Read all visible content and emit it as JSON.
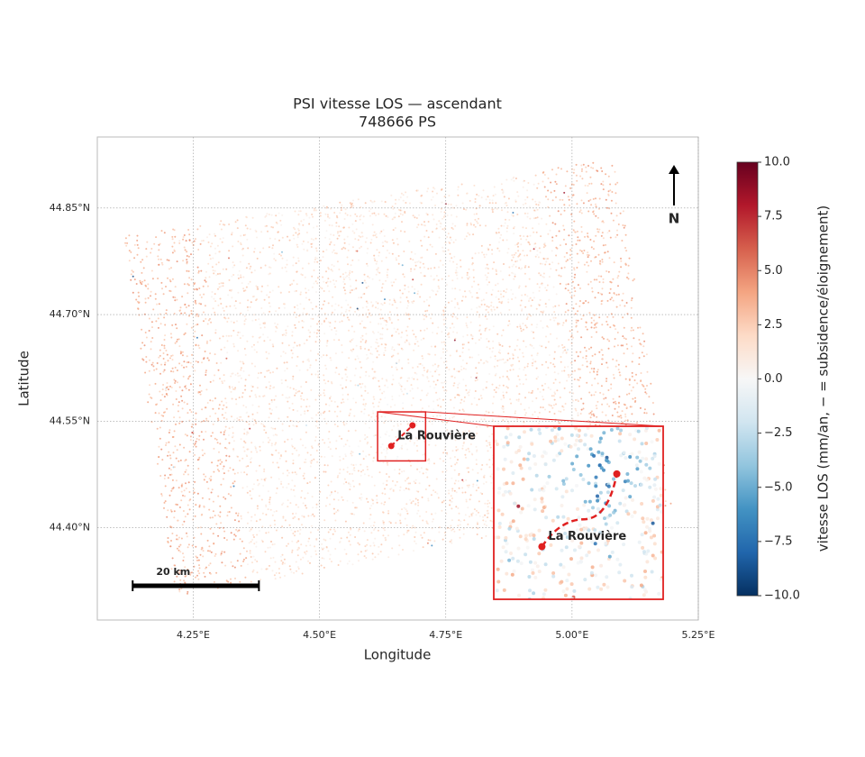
{
  "chart_data": {
    "type": "map-scatter",
    "title": "PSI vitesse LOS — ascendant",
    "subtitle": "748666 PS",
    "x_label": "Longitude",
    "y_label": "Latitude",
    "xlim": [
      4.06,
      5.25
    ],
    "ylim": [
      44.27,
      44.95
    ],
    "xticks": [
      {
        "value": 4.25,
        "label": "4.25°E"
      },
      {
        "value": 4.5,
        "label": "4.50°E"
      },
      {
        "value": 4.75,
        "label": "4.75°E"
      },
      {
        "value": 5.0,
        "label": "5.00°E"
      },
      {
        "value": 5.25,
        "label": "5.25°E"
      }
    ],
    "yticks": [
      {
        "value": 44.85,
        "label": "44.85°N"
      },
      {
        "value": 44.7,
        "label": "44.70°N"
      },
      {
        "value": 44.55,
        "label": "44.55°N"
      },
      {
        "value": 44.4,
        "label": "44.40°N"
      }
    ],
    "grid": true,
    "colormap": [
      "#053061",
      "#2166ac",
      "#4393c3",
      "#92c5de",
      "#d1e5f0",
      "#f7f7f7",
      "#fddbc7",
      "#f4a582",
      "#d6604d",
      "#b2182b",
      "#67001f"
    ],
    "colorbar": {
      "label": "vitesse LOS (mm/an, − = subsidence/éloignement)",
      "lim": [
        -10,
        10
      ],
      "ticks": [
        {
          "value": 10,
          "label": "10.0"
        },
        {
          "value": 7.5,
          "label": "7.5"
        },
        {
          "value": 5,
          "label": "5.0"
        },
        {
          "value": 2.5,
          "label": "2.5"
        },
        {
          "value": 0,
          "label": "0.0"
        },
        {
          "value": -2.5,
          "label": "−2.5"
        },
        {
          "value": -5,
          "label": "−5.0"
        },
        {
          "value": -7.5,
          "label": "−7.5"
        },
        {
          "value": -10,
          "label": "−10.0"
        }
      ]
    },
    "annotation": {
      "text": "La Rouvière",
      "color": "#e02020",
      "lon": [
        4.642,
        4.684
      ],
      "lat": [
        44.515,
        44.544
      ]
    },
    "inset": {
      "xlim": [
        4.615,
        4.71
      ],
      "ylim": [
        44.494,
        44.563
      ]
    },
    "scale_bar": {
      "label": "20 km",
      "lon": [
        4.13,
        4.38
      ]
    },
    "north_arrow": "N"
  }
}
